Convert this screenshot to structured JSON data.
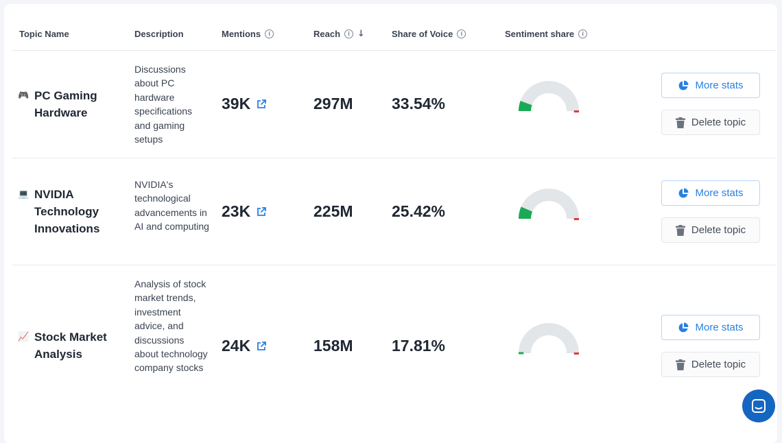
{
  "header": {
    "topic_name": "Topic Name",
    "description": "Description",
    "mentions": "Mentions",
    "reach": "Reach",
    "share_of_voice": "Share of Voice",
    "sentiment_share": "Sentiment share"
  },
  "colors": {
    "accent": "#2a80e0",
    "positive": "#1aaa55",
    "negative": "#e0383e",
    "gauge_track": "#e3e6e9"
  },
  "icons": {
    "info": "info-icon",
    "sort": "sort-down-arrow-icon",
    "external": "external-link-icon",
    "pie": "pie-chart-icon",
    "trash": "trash-icon",
    "chat": "chat-icon"
  },
  "rows": [
    {
      "icon_name": "gamepad-icon",
      "icon_glyph": "🎮",
      "name": "PC Gaming Hardware",
      "description": "Discussions about PC hardware specifications and gaming setups",
      "mentions": "39K",
      "reach": "297M",
      "share_of_voice": "33.54%",
      "sentiment_positive": 0.11,
      "sentiment_negative": 0.08,
      "more_stats": "More stats",
      "delete": "Delete topic"
    },
    {
      "icon_name": "laptop-icon",
      "icon_glyph": "💻",
      "name": "NVIDIA Technology Innovations",
      "description": "NVIDIA's technological advancements in AI and computing",
      "mentions": "23K",
      "reach": "225M",
      "share_of_voice": "25.42%",
      "sentiment_positive": 0.13,
      "sentiment_negative": 0.08,
      "more_stats": "More stats",
      "delete": "Delete topic"
    },
    {
      "icon_name": "chart-increasing-icon",
      "icon_glyph": "📈",
      "name": "Stock Market Analysis",
      "description": "Analysis of stock market trends, investment advice, and discussions about technology company stocks",
      "mentions": "24K",
      "reach": "158M",
      "share_of_voice": "17.81%",
      "sentiment_positive": 0.08,
      "sentiment_negative": 0.08,
      "more_stats": "More stats",
      "delete": "Delete topic"
    }
  ]
}
